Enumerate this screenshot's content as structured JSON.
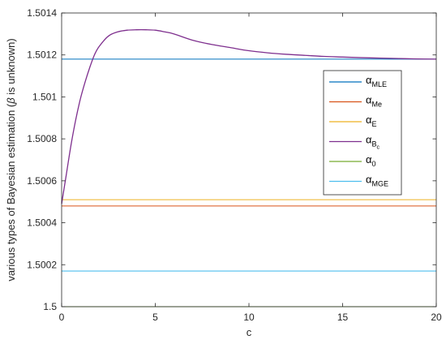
{
  "chart_data": {
    "type": "line",
    "xlabel": "c",
    "ylabel_parts": {
      "before": "various types of Bayesian estimation (",
      "beta": "β",
      "after": " is unknown)"
    },
    "xlim": [
      0,
      20
    ],
    "ylim": [
      1.5,
      1.5014
    ],
    "xticks": [
      0,
      5,
      10,
      15,
      20
    ],
    "yticks": [
      1.5,
      1.5002,
      1.5004,
      1.5006,
      1.5008,
      1.501,
      1.5012,
      1.5014
    ],
    "grid": false,
    "legend_position": "right",
    "series": [
      {
        "name": "α_MLE",
        "symbol": "α",
        "sub": "MLE",
        "subsub": "",
        "color": "#0072BD",
        "kind": "constant",
        "value": 1.50118
      },
      {
        "name": "α_Me",
        "symbol": "α",
        "sub": "Me",
        "subsub": "",
        "color": "#D95319",
        "kind": "constant",
        "value": 1.50048
      },
      {
        "name": "α_E",
        "symbol": "α",
        "sub": "E",
        "subsub": "",
        "color": "#EDB120",
        "kind": "constant",
        "value": 1.50051
      },
      {
        "name": "α_Bc",
        "symbol": "α",
        "sub": "B",
        "subsub": "c",
        "color": "#7E2F8E",
        "kind": "curve",
        "x": [
          0,
          0.25,
          0.5,
          0.75,
          1,
          1.25,
          1.5,
          1.75,
          2,
          2.5,
          3,
          3.5,
          4,
          4.5,
          5,
          5.5,
          6,
          7,
          8,
          9,
          10,
          11,
          12,
          13,
          14,
          15,
          16,
          17,
          18,
          19,
          20
        ],
        "y": [
          1.50049,
          1.50063,
          1.50077,
          1.50089,
          1.50099,
          1.50107,
          1.50114,
          1.5012,
          1.50124,
          1.50129,
          1.50131,
          1.501318,
          1.50132,
          1.50132,
          1.501318,
          1.50131,
          1.5013,
          1.50127,
          1.50125,
          1.501235,
          1.50122,
          1.50121,
          1.501203,
          1.501198,
          1.501193,
          1.50119,
          1.501187,
          1.501185,
          1.501183,
          1.501181,
          1.50118
        ]
      },
      {
        "name": "α_0",
        "symbol": "α",
        "sub": "0",
        "subsub": "",
        "color": "#77AC30",
        "kind": "constant",
        "value": 1.5
      },
      {
        "name": "α_MGE",
        "symbol": "α",
        "sub": "MGE",
        "subsub": "",
        "color": "#4DBEEE",
        "kind": "constant",
        "value": 1.50017
      }
    ]
  }
}
